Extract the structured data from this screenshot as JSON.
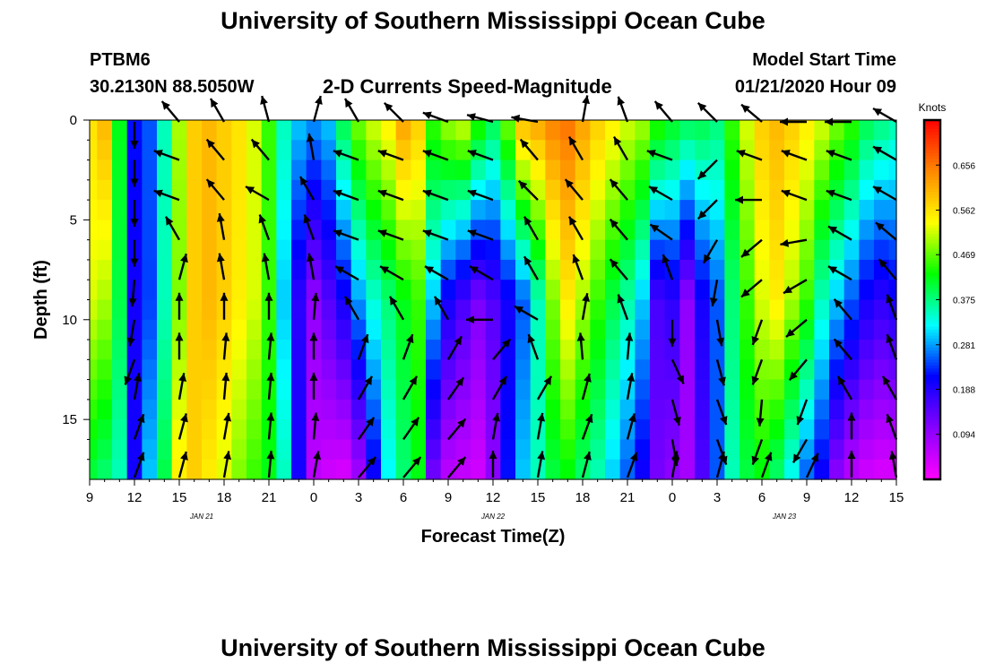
{
  "header": {
    "title": "University of Southern Mississippi Ocean Cube",
    "station_id": "PTBM6",
    "station_location": "30.2130N 88.5050W",
    "subtitle": "2-D Currents Speed-Magnitude",
    "model_start_label": "Model Start Time",
    "model_start_value": "01/21/2020 Hour 09"
  },
  "footer": {
    "title": "University of Southern Mississippi Ocean Cube"
  },
  "chart_data": {
    "type": "heatmap",
    "xlabel": "Forecast Time(Z)",
    "ylabel": "Depth (ft)",
    "x_hours_range": [
      0,
      54
    ],
    "x_tick_labels": [
      "9",
      "12",
      "15",
      "18",
      "21",
      "0",
      "3",
      "6",
      "9",
      "12",
      "15",
      "18",
      "21",
      "0",
      "3",
      "6",
      "9",
      "12",
      "15"
    ],
    "date_labels": [
      {
        "label": "JAN 21",
        "hour": 7.5
      },
      {
        "label": "JAN 22",
        "hour": 27
      },
      {
        "label": "JAN 23",
        "hour": 46.5
      }
    ],
    "ylim": [
      0,
      18
    ],
    "y_ticks": [
      0,
      5,
      10,
      15
    ],
    "colorbar": {
      "title": "Knots",
      "range": [
        0,
        0.75
      ],
      "ticks": [
        "0.094",
        "0.188",
        "0.281",
        "0.375",
        "0.469",
        "0.562",
        "0.656"
      ],
      "colormap": [
        "#ff00ff",
        "#8800ff",
        "#0000ff",
        "#00ffff",
        "#00ff00",
        "#ffff00",
        "#ff8800",
        "#ff0000"
      ]
    },
    "speed_profile": {
      "hours": [
        0,
        1,
        2,
        3,
        4,
        5,
        6,
        7,
        8,
        9,
        10,
        11,
        12,
        13,
        14,
        15,
        16,
        17,
        18,
        19,
        20,
        21,
        22,
        23,
        24,
        25,
        26,
        27,
        28,
        29,
        30,
        31,
        32,
        33,
        34,
        35,
        36,
        37,
        38,
        39,
        40,
        41,
        42,
        43,
        44,
        45,
        46,
        47,
        48,
        49,
        50,
        51,
        52,
        53,
        54
      ],
      "depth_ft": [
        0,
        9,
        18
      ],
      "values_knots": [
        [
          0.56,
          0.6,
          0.42,
          0.22,
          0.25,
          0.35,
          0.5,
          0.58,
          0.6,
          0.58,
          0.56,
          0.52,
          0.45,
          0.35,
          0.3,
          0.28,
          0.3,
          0.4,
          0.48,
          0.52,
          0.55,
          0.62,
          0.58,
          0.45,
          0.5,
          0.52,
          0.45,
          0.4,
          0.48,
          0.6,
          0.62,
          0.65,
          0.66,
          0.62,
          0.58,
          0.55,
          0.52,
          0.5,
          0.45,
          0.42,
          0.4,
          0.4,
          0.38,
          0.45,
          0.52,
          0.58,
          0.6,
          0.58,
          0.55,
          0.52,
          0.48,
          0.45,
          0.4,
          0.38,
          0.36
        ],
        [
          0.52,
          0.5,
          0.4,
          0.2,
          0.24,
          0.35,
          0.48,
          0.58,
          0.6,
          0.58,
          0.55,
          0.52,
          0.45,
          0.3,
          0.18,
          0.1,
          0.15,
          0.2,
          0.28,
          0.34,
          0.38,
          0.42,
          0.45,
          0.3,
          0.2,
          0.16,
          0.12,
          0.15,
          0.2,
          0.25,
          0.35,
          0.48,
          0.55,
          0.5,
          0.45,
          0.4,
          0.36,
          0.3,
          0.16,
          0.18,
          0.1,
          0.2,
          0.25,
          0.38,
          0.45,
          0.52,
          0.55,
          0.5,
          0.45,
          0.35,
          0.3,
          0.25,
          0.2,
          0.18,
          0.2
        ],
        [
          0.4,
          0.38,
          0.35,
          0.2,
          0.3,
          0.4,
          0.55,
          0.58,
          0.55,
          0.52,
          0.48,
          0.45,
          0.42,
          0.35,
          0.2,
          0.06,
          0.04,
          0.03,
          0.08,
          0.2,
          0.32,
          0.38,
          0.42,
          0.12,
          0.06,
          0.05,
          0.04,
          0.1,
          0.22,
          0.3,
          0.35,
          0.4,
          0.42,
          0.38,
          0.35,
          0.3,
          0.25,
          0.2,
          0.12,
          0.1,
          0.08,
          0.15,
          0.25,
          0.35,
          0.4,
          0.42,
          0.38,
          0.32,
          0.25,
          0.2,
          0.1,
          0.06,
          0.04,
          0.03,
          0.03
        ]
      ]
    },
    "vector_rows_depth_ft": [
      0,
      2,
      4,
      6,
      8,
      10,
      12,
      14,
      16,
      18
    ],
    "vector_columns_hours": [
      3,
      6,
      9,
      12,
      15,
      18,
      21,
      24,
      27,
      30,
      33,
      36,
      39,
      42,
      45,
      48,
      51,
      54
    ],
    "vector_directions_deg": [
      [
        180,
        320,
        330,
        345,
        15,
        330,
        315,
        290,
        285,
        280,
        10,
        340,
        320,
        315,
        310,
        270,
        270,
        300
      ],
      [
        180,
        290,
        320,
        320,
        350,
        290,
        290,
        290,
        290,
        320,
        330,
        330,
        290,
        225,
        290,
        290,
        290,
        300
      ],
      [
        180,
        290,
        320,
        300,
        330,
        290,
        290,
        290,
        290,
        315,
        320,
        320,
        300,
        225,
        270,
        290,
        290,
        300
      ],
      [
        180,
        330,
        350,
        340,
        340,
        290,
        290,
        290,
        290,
        330,
        330,
        320,
        305,
        210,
        230,
        260,
        300,
        310
      ],
      [
        185,
        15,
        350,
        350,
        350,
        300,
        300,
        300,
        300,
        330,
        340,
        320,
        340,
        190,
        230,
        240,
        300,
        320
      ],
      [
        190,
        360,
        360,
        360,
        5,
        330,
        330,
        330,
        270,
        300,
        10,
        340,
        180,
        170,
        200,
        230,
        320,
        340
      ],
      [
        200,
        0,
        5,
        5,
        0,
        20,
        20,
        30,
        40,
        340,
        355,
        5,
        155,
        165,
        200,
        220,
        320,
        340
      ],
      [
        10,
        10,
        5,
        5,
        0,
        30,
        30,
        35,
        30,
        30,
        15,
        10,
        165,
        160,
        185,
        200,
        330,
        330
      ],
      [
        20,
        15,
        10,
        5,
        5,
        35,
        35,
        40,
        10,
        10,
        20,
        15,
        170,
        160,
        200,
        210,
        0,
        340
      ],
      [
        20,
        15,
        10,
        5,
        10,
        40,
        40,
        40,
        0,
        10,
        15,
        20,
        10,
        15,
        20,
        25,
        0,
        350
      ]
    ]
  }
}
